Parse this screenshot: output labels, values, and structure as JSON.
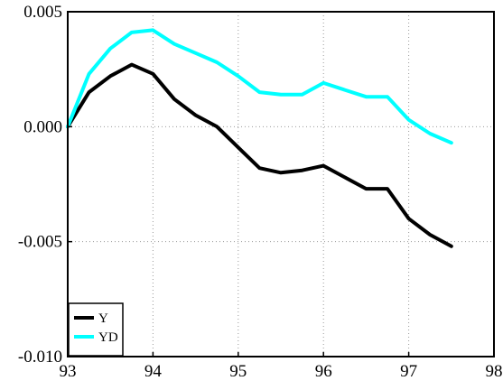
{
  "chart_data": {
    "type": "line",
    "title": "",
    "xlabel": "",
    "ylabel": "",
    "xlim": [
      93,
      98
    ],
    "ylim": [
      -0.01,
      0.005
    ],
    "x_ticks": [
      93,
      94,
      95,
      96,
      97,
      98
    ],
    "x_tick_labels": [
      "93",
      "94",
      "95",
      "96",
      "97",
      "98"
    ],
    "y_ticks": [
      -0.01,
      -0.005,
      0.0,
      0.005
    ],
    "y_tick_labels": [
      "-0.010",
      "-0.005",
      "0.000",
      "0.005"
    ],
    "grid": true,
    "legend_position": "bottom-left",
    "x": [
      93.0,
      93.25,
      93.5,
      93.75,
      94.0,
      94.25,
      94.5,
      94.75,
      95.0,
      95.25,
      95.5,
      95.75,
      96.0,
      96.25,
      96.5,
      96.75,
      97.0,
      97.25,
      97.5
    ],
    "series": [
      {
        "name": "Y",
        "color": "#000000",
        "values": [
          0.0,
          0.0015,
          0.0022,
          0.0027,
          0.0023,
          0.0012,
          0.0005,
          0.0,
          -0.0009,
          -0.0018,
          -0.002,
          -0.0019,
          -0.0017,
          -0.0022,
          -0.0027,
          -0.0027,
          -0.004,
          -0.0047,
          -0.0052
        ]
      },
      {
        "name": "YD",
        "color": "#00ffff",
        "values": [
          0.0,
          0.0023,
          0.0034,
          0.0041,
          0.0042,
          0.0036,
          0.0032,
          0.0028,
          0.0022,
          0.0015,
          0.0014,
          0.0014,
          0.0019,
          0.0016,
          0.0013,
          0.0013,
          0.0003,
          -0.0003,
          -0.0007
        ]
      }
    ]
  }
}
